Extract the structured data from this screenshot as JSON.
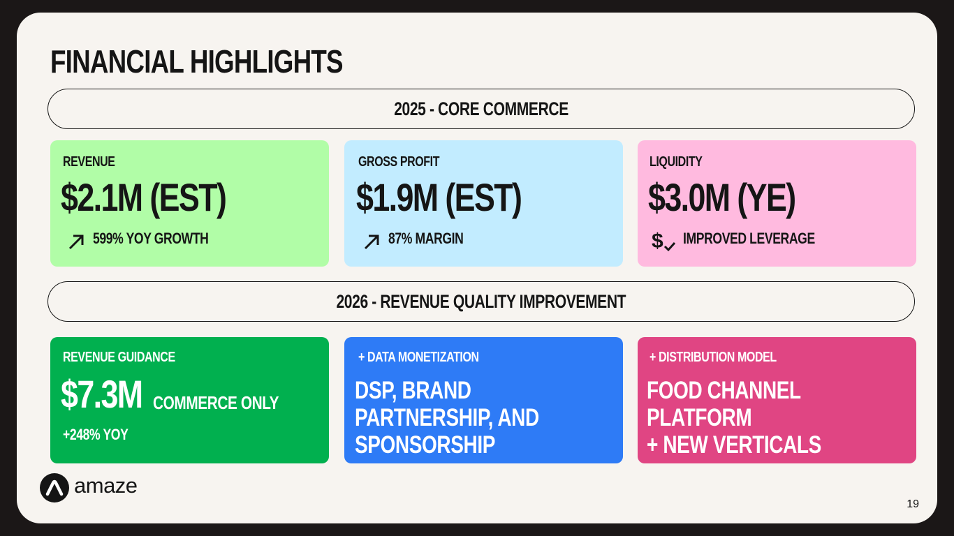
{
  "title": "FINANCIAL HIGHLIGHTS",
  "section_2025": "2025  - CORE COMMERCE",
  "section_2026": "2026 - REVENUE QUALITY IMPROVEMENT",
  "cards_2025": [
    {
      "label": "REVENUE",
      "value": "$2.1M (EST)",
      "note": "599% YOY GROWTH",
      "icon": "arrow-up-right-icon",
      "color": "#b1fda7"
    },
    {
      "label": "GROSS PROFIT",
      "value": "$1.9M (EST)",
      "note": "87% MARGIN",
      "icon": "arrow-up-right-icon",
      "color": "#c2ecff"
    },
    {
      "label": "LIQUIDITY",
      "value": "$3.0M (YE)",
      "note": "IMPROVED LEVERAGE",
      "icon": "dollar-check-icon",
      "color": "#ffbadf"
    }
  ],
  "cards_2026": [
    {
      "label": "REVENUE GUIDANCE",
      "value": "$7.3M",
      "value_note": "COMMERCE ONLY",
      "note": "+248% YOY",
      "color": "#01b04f"
    },
    {
      "label": "+ DATA MONETIZATION",
      "lines": [
        "DSP, BRAND",
        "PARTNERSHIP, AND",
        "SPONSORSHIP"
      ],
      "color": "#2e7bf6"
    },
    {
      "label": "+ DISTRIBUTION MODEL",
      "lines": [
        "FOOD CHANNEL",
        "PLATFORM",
        "+ NEW VERTICALS"
      ],
      "color": "#e04583"
    }
  ],
  "logo": {
    "text": "amaze",
    "icon": "amaze-logo-icon"
  },
  "page_number": "19"
}
